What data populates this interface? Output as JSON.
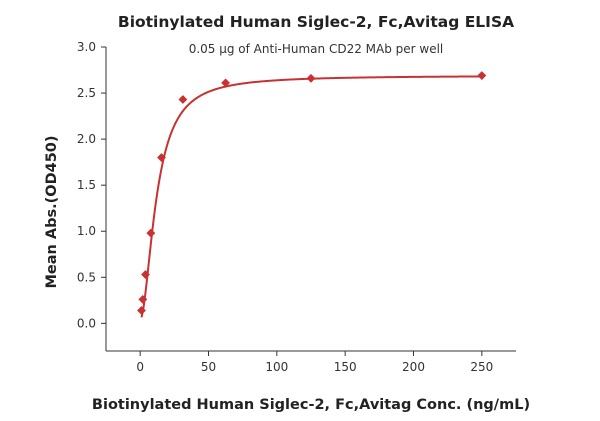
{
  "chart_data": {
    "type": "scatter",
    "title": "Biotinylated Human Siglec-2, Fc,Avitag ELISA",
    "subtitle": "0.05 μg of Anti-Human CD22 MAb per well",
    "xlabel": "Biotinylated Human Siglec-2, Fc,Avitag Conc. (ng/mL)",
    "ylabel": "Mean Abs.(OD450)",
    "xlim": [
      -25,
      275
    ],
    "ylim": [
      -0.3,
      3.0
    ],
    "xticks": [
      "0",
      "50",
      "100",
      "150",
      "200",
      "250"
    ],
    "yticks": [
      "0.0",
      "0.5",
      "1.0",
      "1.5",
      "2.0",
      "2.5",
      "3.0"
    ],
    "grid": false,
    "legend": "none",
    "colors": {
      "series": "#c83232"
    },
    "series": [
      {
        "marker": "diamond",
        "x": [
          0.98,
          1.95,
          3.9,
          7.8,
          15.6,
          31.25,
          62.5,
          125,
          250
        ],
        "y": [
          0.14,
          0.26,
          0.53,
          0.98,
          1.8,
          2.43,
          2.61,
          2.66,
          2.69
        ]
      }
    ],
    "fit_curve": {
      "type": "4PL sigmoid",
      "bottom": 0.04,
      "top": 2.69,
      "ec50": 12,
      "hill": 1.85
    }
  }
}
